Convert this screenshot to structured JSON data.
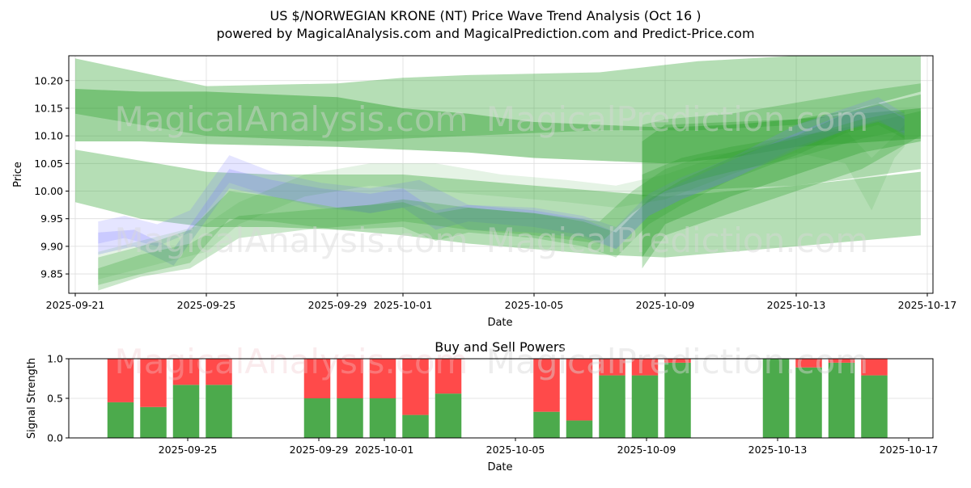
{
  "page": {
    "title": "US $/NORWEGIAN KRONE (NT) Price Wave Trend Analysis (Oct 16 )",
    "subtitle": "powered by MagicalAnalysis.com and MagicalPrediction.com and Predict-Price.com",
    "watermarks": [
      "MagicalAnalysis.com",
      "MagicalPrediction.com"
    ]
  },
  "colors": {
    "band_green": "#2ca02c",
    "band_blue": "#7b7bff",
    "buy": "#4caa4c",
    "sell": "#ff4a4a",
    "grid": "#dddddd"
  },
  "chart_data": [
    {
      "type": "area",
      "title": "",
      "xlabel": "Date",
      "ylabel": "Price",
      "ylim": [
        9.815,
        10.245
      ],
      "xlim": [
        "2025-09-20T19:00",
        "2025-10-17T05:00"
      ],
      "grid": true,
      "yticks": [
        "9.85",
        "9.90",
        "9.95",
        "10.00",
        "10.05",
        "10.10",
        "10.15",
        "10.20"
      ],
      "ytick_values": [
        9.85,
        9.9,
        9.95,
        10.0,
        10.05,
        10.1,
        10.15,
        10.2
      ],
      "xticks": [
        "2025-09-21",
        "2025-09-25",
        "2025-09-29",
        "2025-10-01",
        "2025-10-05",
        "2025-10-09",
        "2025-10-13",
        "2025-10-17"
      ],
      "xtick_days": [
        0,
        4,
        8,
        10,
        14,
        18,
        22,
        26
      ],
      "base_date": "2025-09-21",
      "bands": [
        {
          "name": "wave-band-1",
          "color": "green",
          "opacity": 0.35,
          "x": [
            0,
            2,
            4,
            8,
            10,
            12,
            16,
            19,
            22,
            25.8
          ],
          "upper": [
            10.24,
            10.215,
            10.19,
            10.195,
            10.205,
            10.21,
            10.215,
            10.235,
            10.245,
            10.245
          ],
          "lower": [
            10.14,
            10.12,
            10.1,
            10.09,
            10.095,
            10.1,
            10.11,
            10.11,
            10.12,
            10.18
          ]
        },
        {
          "name": "wave-band-2",
          "color": "green",
          "opacity": 0.45,
          "x": [
            0,
            2,
            4,
            8,
            10,
            12,
            14,
            16,
            18,
            20,
            22,
            25.8
          ],
          "upper": [
            10.185,
            10.18,
            10.18,
            10.17,
            10.15,
            10.14,
            10.125,
            10.12,
            10.115,
            10.12,
            10.13,
            10.15
          ],
          "lower": [
            10.09,
            10.09,
            10.085,
            10.08,
            10.075,
            10.07,
            10.06,
            10.055,
            10.05,
            10.06,
            10.08,
            10.095
          ]
        },
        {
          "name": "wave-band-3",
          "color": "green",
          "opacity": 0.35,
          "x": [
            0,
            2,
            4,
            6,
            8,
            10,
            12,
            14,
            16,
            18,
            20,
            22,
            25.8
          ],
          "upper": [
            10.075,
            10.055,
            10.035,
            10.03,
            10.03,
            10.03,
            10.02,
            10.01,
            10.0,
            9.99,
            10.0,
            10.01,
            10.035
          ],
          "lower": [
            9.98,
            9.95,
            9.935,
            9.935,
            9.93,
            9.92,
            9.905,
            9.895,
            9.885,
            9.88,
            9.89,
            9.9,
            9.92
          ]
        },
        {
          "name": "wave-band-4",
          "color": "green",
          "opacity": 0.35,
          "x": [
            17.3,
            18,
            20,
            22,
            24,
            25.8
          ],
          "upper": [
            10.09,
            10.12,
            10.125,
            10.13,
            10.15,
            10.175
          ],
          "lower": [
            9.88,
            9.94,
            9.99,
            10.03,
            10.07,
            10.09
          ]
        },
        {
          "name": "wave-band-5",
          "color": "green",
          "opacity": 0.3,
          "x": [
            17.3,
            18,
            20,
            22,
            24,
            25.8
          ],
          "upper": [
            10.12,
            10.13,
            10.14,
            10.16,
            10.18,
            10.195
          ],
          "lower": [
            9.86,
            9.92,
            9.96,
            10.0,
            10.04,
            10.1
          ]
        },
        {
          "name": "wave-band-6",
          "color": "green",
          "opacity": 0.3,
          "x": [
            17.3,
            18.5,
            20,
            22,
            24,
            25.8
          ],
          "upper": [
            10.03,
            10.06,
            10.08,
            10.1,
            10.12,
            10.145
          ],
          "lower": [
            9.99,
            10.0,
            10.005,
            10.01,
            10.025,
            10.04
          ]
        },
        {
          "name": "price-band-blue-1",
          "color": "blue",
          "opacity": 0.2,
          "x": [
            0.7,
            1.5,
            2.5,
            3.5,
            4.7,
            6,
            7.5,
            9,
            10.5,
            12,
            14,
            15.5,
            16.5,
            17.5,
            18.5,
            20,
            22,
            23.5,
            24.5,
            25.3
          ],
          "upper": [
            9.945,
            9.955,
            9.94,
            9.965,
            10.065,
            10.035,
            10.015,
            10.005,
            10.02,
            9.975,
            9.97,
            9.955,
            9.935,
            9.995,
            10.025,
            10.06,
            10.12,
            10.15,
            10.17,
            10.14
          ],
          "lower": [
            9.905,
            9.915,
            9.9,
            9.925,
            10.015,
            9.99,
            9.97,
            9.96,
            9.975,
            9.93,
            9.925,
            9.915,
            9.895,
            9.955,
            9.985,
            10.02,
            10.08,
            10.11,
            10.13,
            10.1
          ]
        },
        {
          "name": "price-band-blue-2",
          "color": "blue",
          "opacity": 0.25,
          "x": [
            0.7,
            1.8,
            3,
            4.7,
            6,
            7.5,
            9,
            10,
            11,
            12,
            14,
            15.5,
            16.5,
            17.5,
            18.5,
            20,
            22,
            23.5,
            24.5,
            25.3
          ],
          "upper": [
            9.925,
            9.93,
            9.895,
            10.04,
            10.02,
            10.005,
            9.995,
            10.005,
            9.965,
            9.975,
            9.965,
            9.95,
            9.925,
            9.985,
            10.015,
            10.055,
            10.105,
            10.14,
            10.155,
            10.135
          ],
          "lower": [
            9.885,
            9.9,
            9.865,
            10.005,
            9.99,
            9.975,
            9.96,
            9.97,
            9.93,
            9.945,
            9.935,
            9.92,
            9.895,
            9.955,
            9.985,
            10.02,
            10.075,
            10.11,
            10.125,
            10.105
          ]
        },
        {
          "name": "price-band-green-1",
          "color": "green",
          "opacity": 0.25,
          "x": [
            0.7,
            2,
            3.5,
            4.7,
            6,
            8,
            10,
            11,
            12,
            14,
            15.5,
            16.5,
            17.5,
            18.5,
            20,
            22,
            23.5,
            24.5,
            25.3
          ],
          "upper": [
            9.88,
            9.9,
            9.93,
            10.0,
            9.99,
            9.97,
            9.98,
            9.96,
            9.97,
            9.96,
            9.945,
            9.925,
            9.985,
            10.02,
            10.06,
            10.1,
            10.14,
            10.16,
            10.13
          ],
          "lower": [
            9.83,
            9.85,
            9.87,
            9.95,
            9.945,
            9.93,
            9.935,
            9.91,
            9.925,
            9.915,
            9.9,
            9.88,
            9.94,
            9.975,
            10.02,
            10.065,
            10.105,
            10.12,
            10.095
          ]
        },
        {
          "name": "price-band-green-2",
          "color": "green",
          "opacity": 0.25,
          "x": [
            0.7,
            2,
            3.5,
            5,
            7,
            9,
            10,
            12,
            14,
            16,
            17,
            18,
            19,
            20,
            22,
            24,
            25.3
          ],
          "upper": [
            9.86,
            9.885,
            9.905,
            9.955,
            9.965,
            9.975,
            9.985,
            9.97,
            9.96,
            9.945,
            10.0,
            10.04,
            10.06,
            10.07,
            10.095,
            10.13,
            10.145
          ],
          "lower": [
            9.82,
            9.845,
            9.86,
            9.915,
            9.93,
            9.94,
            9.945,
            9.93,
            9.92,
            9.905,
            9.96,
            10.0,
            10.02,
            10.035,
            10.06,
            10.095,
            10.11
          ]
        },
        {
          "name": "price-band-light-1",
          "color": "green",
          "opacity": 0.12,
          "x": [
            0.7,
            2,
            4,
            5,
            7,
            9,
            11,
            13,
            15,
            16.5,
            18,
            20,
            22,
            23.5,
            24.3,
            25,
            25.3
          ],
          "upper": [
            9.89,
            9.91,
            9.94,
            9.98,
            10.03,
            10.05,
            10.05,
            10.03,
            10.02,
            10.01,
            10.03,
            10.07,
            10.1,
            10.11,
            10.06,
            10.1,
            10.12
          ],
          "lower": [
            9.84,
            9.86,
            9.89,
            9.94,
            9.99,
            10.01,
            10.0,
            9.99,
            9.98,
            9.97,
            9.985,
            10.03,
            10.07,
            10.05,
            9.965,
            10.06,
            10.08
          ]
        }
      ]
    },
    {
      "type": "bar",
      "title": "Buy and Sell Powers",
      "xlabel": "Date",
      "ylabel": "Signal Strength",
      "ylim": [
        0,
        1
      ],
      "yticks": [
        "0.0",
        "0.5",
        "1.0"
      ],
      "ytick_values": [
        0,
        0.5,
        1.0
      ],
      "xticks": [
        "2025-09-25",
        "2025-09-29",
        "2025-10-01",
        "2025-10-05",
        "2025-10-09",
        "2025-10-13",
        "2025-10-17"
      ],
      "xtick_days": [
        4,
        8,
        10,
        14,
        18,
        22,
        26
      ],
      "xlim_days": [
        0.1,
        27.0
      ],
      "base_date": "2025-09-21",
      "categories": [
        "2025-09-23",
        "2025-09-24",
        "2025-09-25",
        "2025-09-26",
        "2025-09-29",
        "2025-09-30",
        "2025-10-01",
        "2025-10-02",
        "2025-10-03",
        "2025-10-06",
        "2025-10-07",
        "2025-10-08",
        "2025-10-09",
        "2025-10-10",
        "2025-10-13",
        "2025-10-14",
        "2025-10-15",
        "2025-10-16"
      ],
      "category_days": [
        2,
        3,
        4,
        5,
        8,
        9,
        10,
        11,
        12,
        15,
        16,
        17,
        18,
        19,
        22,
        23,
        24,
        25
      ],
      "series": [
        {
          "name": "Buy",
          "color": "#4caa4c",
          "values": [
            0.45,
            0.39,
            0.67,
            0.67,
            0.5,
            0.5,
            0.5,
            0.29,
            0.56,
            0.33,
            0.22,
            0.79,
            0.79,
            0.95,
            1.0,
            0.89,
            0.95,
            0.79
          ]
        },
        {
          "name": "Sell",
          "color": "#ff4a4a",
          "values": [
            0.55,
            0.61,
            0.33,
            0.33,
            0.5,
            0.5,
            0.5,
            0.71,
            0.44,
            0.67,
            0.78,
            0.21,
            0.21,
            0.05,
            0.0,
            0.11,
            0.05,
            0.21
          ]
        }
      ]
    }
  ]
}
